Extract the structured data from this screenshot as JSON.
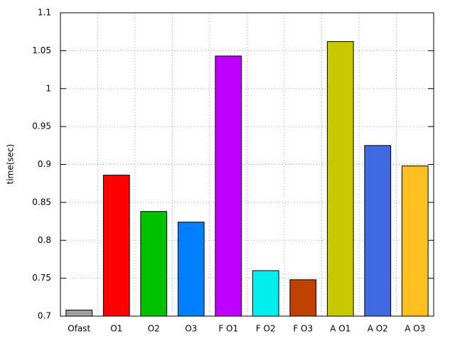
{
  "chart_data": {
    "type": "bar",
    "y_label": "time(sec)",
    "categories": [
      "Ofast",
      "O1",
      "O2",
      "O3",
      "F O1",
      "F O2",
      "F O3",
      "A O1",
      "A O2",
      "A O3"
    ],
    "values": [
      0.708,
      0.886,
      0.838,
      0.824,
      1.043,
      0.76,
      0.748,
      1.062,
      0.925,
      0.898
    ],
    "colors": [
      "#a0a0a0",
      "#ff0000",
      "#00c000",
      "#0080ff",
      "#c000ff",
      "#00eeee",
      "#c04000",
      "#c8c800",
      "#4169e1",
      "#ffc020"
    ],
    "ylim": [
      0.7,
      1.1
    ],
    "yticks": [
      0.7,
      0.75,
      0.8,
      0.85,
      0.9,
      0.95,
      1,
      1.05,
      1.1
    ],
    "grid": true
  }
}
